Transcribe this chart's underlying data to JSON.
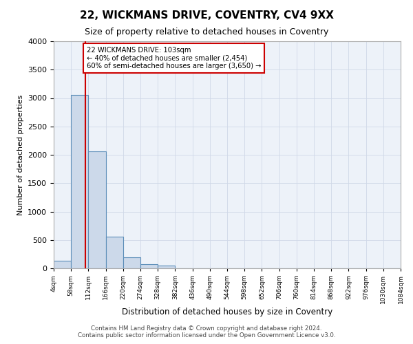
{
  "title_line1": "22, WICKMANS DRIVE, COVENTRY, CV4 9XX",
  "title_line2": "Size of property relative to detached houses in Coventry",
  "xlabel": "Distribution of detached houses by size in Coventry",
  "ylabel": "Number of detached properties",
  "bar_color": "#ccd9ea",
  "bar_edge_color": "#5b8db8",
  "bin_edges": [
    4,
    58,
    112,
    166,
    220,
    274,
    328,
    382,
    436,
    490,
    544,
    598,
    652,
    706,
    760,
    814,
    868,
    922,
    976,
    1030,
    1084
  ],
  "bar_heights": [
    130,
    3060,
    2060,
    560,
    200,
    75,
    50,
    0,
    0,
    0,
    0,
    0,
    0,
    0,
    0,
    0,
    0,
    0,
    0,
    0
  ],
  "property_size": 103,
  "vline_color": "#cc0000",
  "annotation_text": "22 WICKMANS DRIVE: 103sqm\n← 40% of detached houses are smaller (2,454)\n60% of semi-detached houses are larger (3,650) →",
  "annotation_box_color": "#ffffff",
  "annotation_box_edge": "#cc0000",
  "ylim": [
    0,
    4000
  ],
  "yticks": [
    0,
    500,
    1000,
    1500,
    2000,
    2500,
    3000,
    3500,
    4000
  ],
  "footer_line1": "Contains HM Land Registry data © Crown copyright and database right 2024.",
  "footer_line2": "Contains public sector information licensed under the Open Government Licence v3.0.",
  "grid_color": "#d0d8e8",
  "background_color": "#edf2f9"
}
